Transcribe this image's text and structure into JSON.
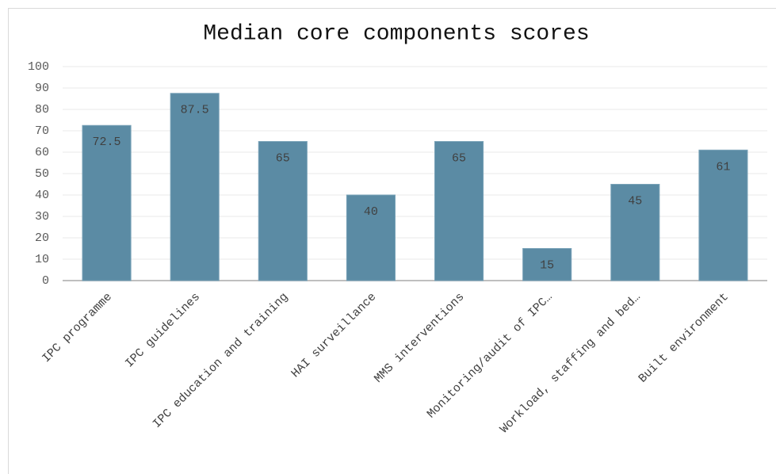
{
  "chart_data": {
    "type": "bar",
    "title": "Median core components scores",
    "categories": [
      "IPC programme",
      "IPC guidelines",
      "IPC education and training",
      "HAI surveillance",
      "MMS interventions",
      "Monitoring/audit of IPC…",
      "Workload, staffing and bed…",
      "Built environment"
    ],
    "values": [
      72.5,
      87.5,
      65,
      40,
      65,
      15,
      45,
      61
    ],
    "color": "#5b8ba4",
    "ylim": [
      0,
      100
    ],
    "yticks": [
      0,
      10,
      20,
      30,
      40,
      50,
      60,
      70,
      80,
      90,
      100
    ],
    "grid": true
  }
}
